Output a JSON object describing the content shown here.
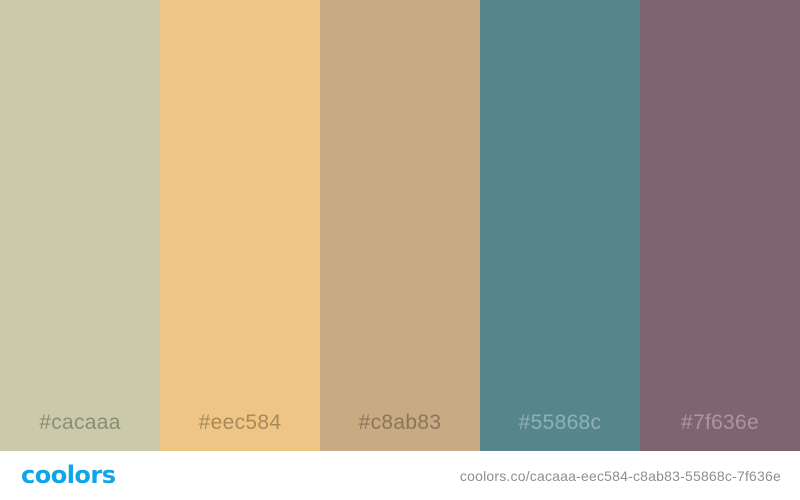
{
  "swatches": [
    {
      "hex": "#cacaaa",
      "color": "#cacaaa",
      "label_color": "#8c8d78"
    },
    {
      "hex": "#eec584",
      "color": "#eec584",
      "label_color": "#a78a5c"
    },
    {
      "hex": "#c8ab83",
      "color": "#c8ab83",
      "label_color": "#8a775b"
    },
    {
      "hex": "#55868c",
      "color": "#55868c",
      "label_color": "#8fb0b4"
    },
    {
      "hex": "#7f636e",
      "color": "#7f636e",
      "label_color": "#ab96a0"
    }
  ],
  "footer": {
    "brand": "coolors",
    "brand_color": "#0ea5e9",
    "url": "coolors.co/cacaaa-eec584-c8ab83-55868c-7f636e"
  }
}
